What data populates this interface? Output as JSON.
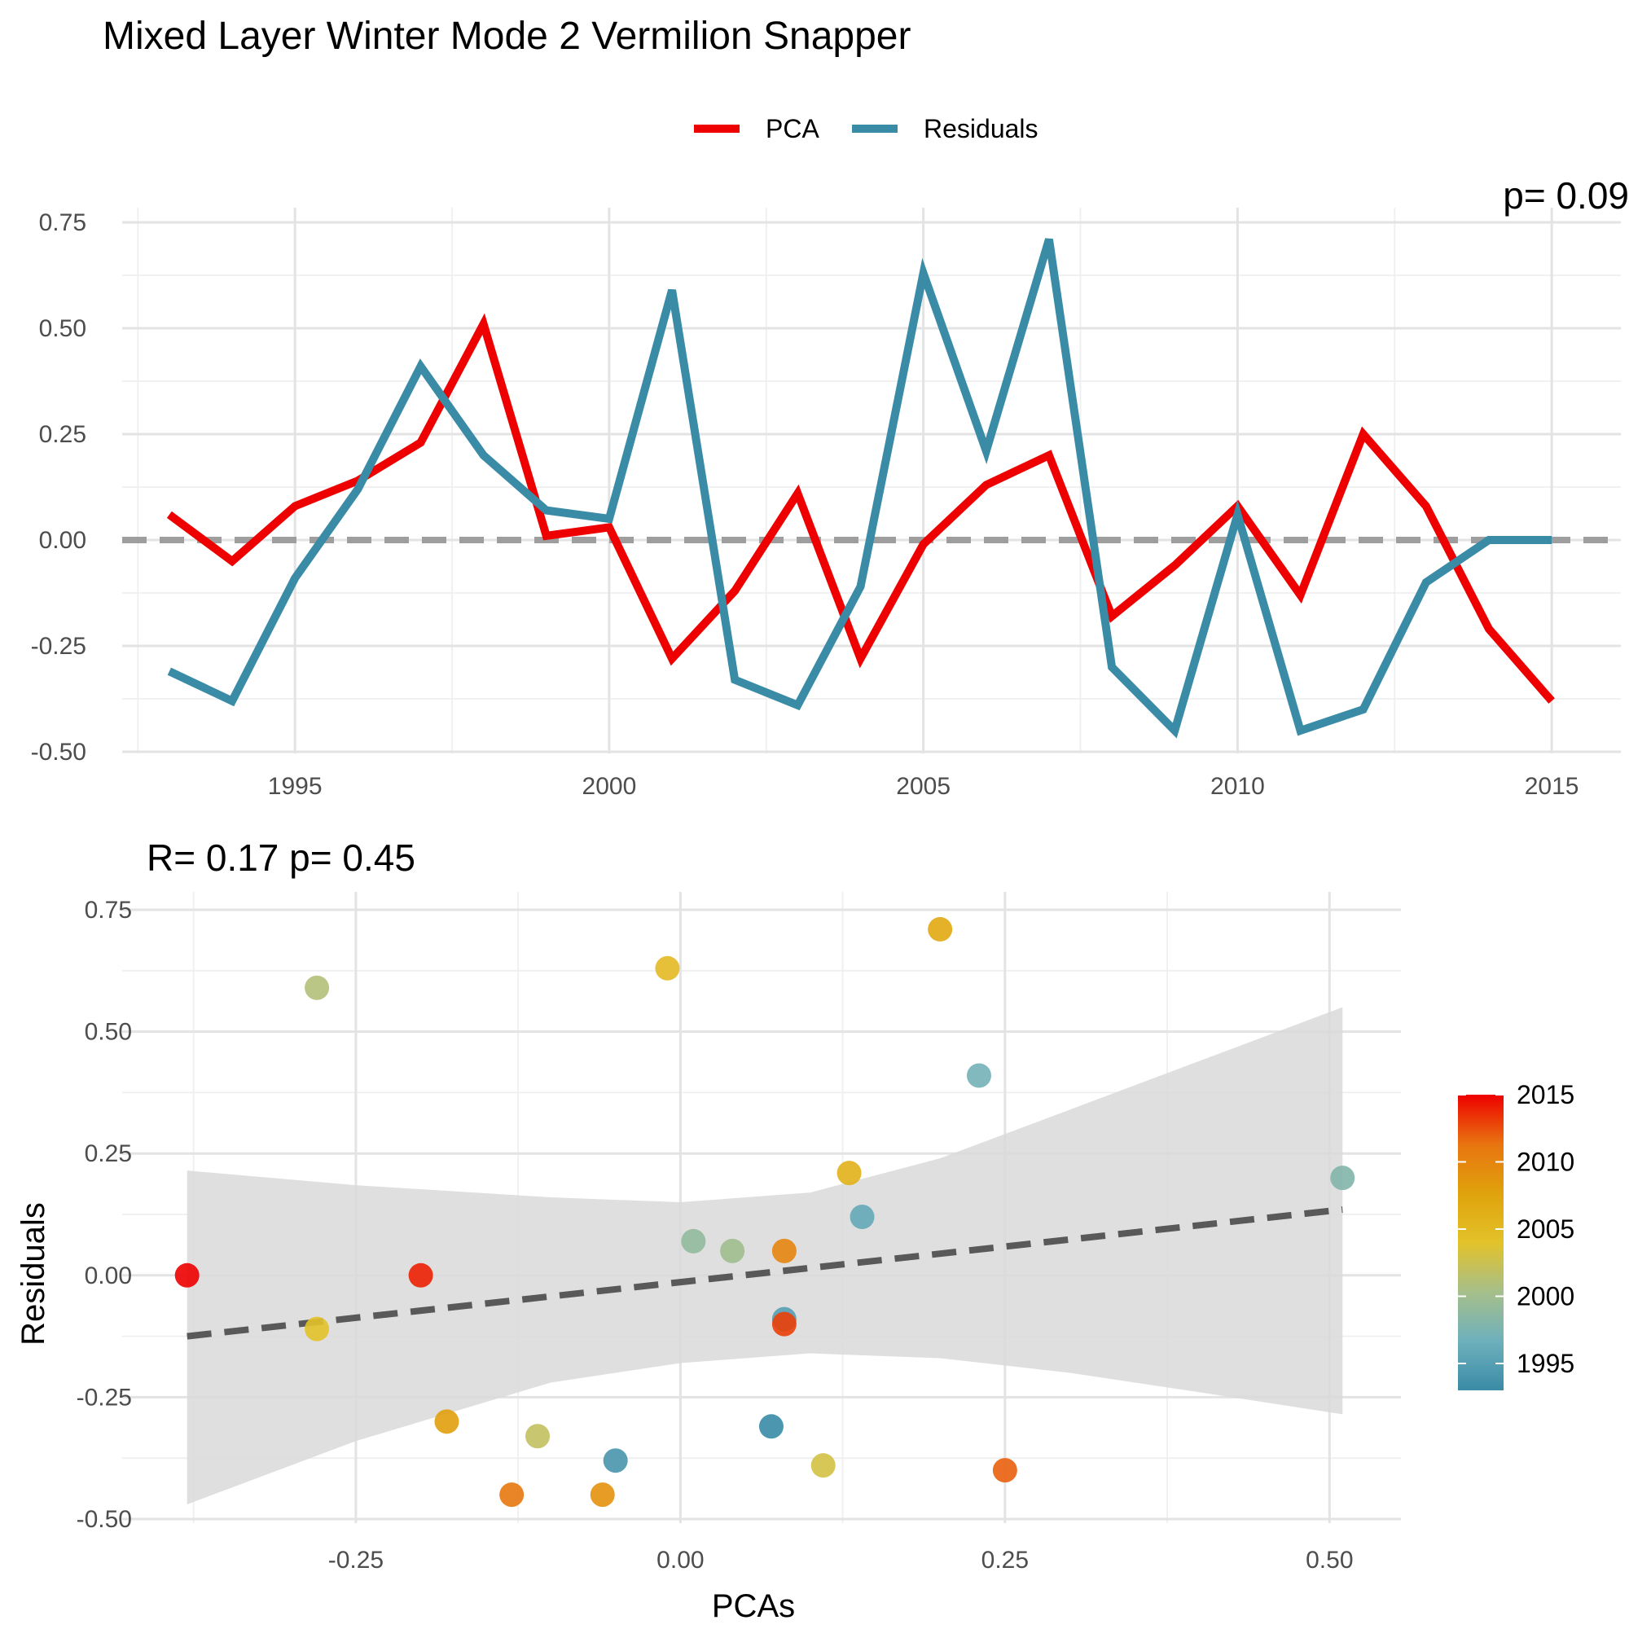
{
  "title": "Mixed Layer Winter Mode 2 Vermilion Snapper",
  "colors": {
    "pca": "#ee0000",
    "residuals": "#3a8ba6",
    "zero_line": "#9e9e9e",
    "fit_line": "#595959",
    "ribbon": "#d9d9d9"
  },
  "legend": {
    "position": "top",
    "items": [
      "PCA",
      "Residuals"
    ]
  },
  "top_partial_text": "p= 0.09",
  "annotation": "R= 0.17  p= 0.45",
  "colorbar": {
    "ticks": [
      "2015",
      "2010",
      "2005",
      "2000",
      "1995"
    ],
    "tick_values": [
      2015,
      2010,
      2005,
      2000,
      1995
    ],
    "range": [
      1993,
      2015
    ],
    "stops": [
      "#3a8ba6",
      "#6eb0bc",
      "#a6bf8a",
      "#e3c22a",
      "#e0a20c",
      "#e87410",
      "#ee0000"
    ]
  },
  "chart_data": [
    {
      "type": "line",
      "title": "Mixed Layer Winter Mode 2 Vermilion Snapper",
      "xlabel": "",
      "ylabel": "",
      "x": [
        1993,
        1994,
        1995,
        1996,
        1997,
        1998,
        1999,
        2000,
        2001,
        2002,
        2003,
        2004,
        2005,
        2006,
        2007,
        2008,
        2009,
        2010,
        2011,
        2012,
        2013,
        2014,
        2015
      ],
      "series": [
        {
          "name": "PCA",
          "values": [
            0.06,
            -0.05,
            0.08,
            0.14,
            0.23,
            0.51,
            0.01,
            0.03,
            -0.28,
            -0.12,
            0.11,
            -0.28,
            -0.01,
            0.13,
            0.2,
            -0.18,
            -0.06,
            0.08,
            -0.13,
            0.25,
            0.08,
            -0.21,
            -0.38
          ]
        },
        {
          "name": "Residuals",
          "values": [
            -0.31,
            -0.38,
            -0.09,
            0.12,
            0.41,
            0.2,
            0.07,
            0.05,
            0.59,
            -0.33,
            -0.39,
            -0.11,
            0.63,
            0.21,
            0.71,
            -0.3,
            -0.45,
            0.06,
            -0.45,
            -0.4,
            -0.1,
            0.0,
            0.0
          ]
        }
      ],
      "reference_line": 0,
      "xlim": [
        1992.25,
        2016.1
      ],
      "ylim": [
        -0.5,
        0.78
      ],
      "xticks": [
        "1995",
        "2000",
        "2005",
        "2010",
        "2015"
      ],
      "yticks": [
        "-0.50",
        "-0.25",
        "0.00",
        "0.25",
        "0.50",
        "0.75"
      ],
      "grid": true,
      "legend": "top"
    },
    {
      "type": "scatter",
      "xlabel": "PCAs",
      "ylabel": "Residuals",
      "points": [
        {
          "year": 1993,
          "x": 0.07,
          "y": -0.31
        },
        {
          "year": 1994,
          "x": -0.05,
          "y": -0.38
        },
        {
          "year": 1995,
          "x": 0.08,
          "y": -0.09
        },
        {
          "year": 1996,
          "x": 0.14,
          "y": 0.12
        },
        {
          "year": 1997,
          "x": 0.23,
          "y": 0.41
        },
        {
          "year": 1998,
          "x": 0.51,
          "y": 0.2
        },
        {
          "year": 1999,
          "x": 0.01,
          "y": 0.07
        },
        {
          "year": 2000,
          "x": 0.04,
          "y": 0.05
        },
        {
          "year": 2001,
          "x": -0.28,
          "y": 0.59
        },
        {
          "year": 2002,
          "x": -0.11,
          "y": -0.33
        },
        {
          "year": 2003,
          "x": 0.11,
          "y": -0.39
        },
        {
          "year": 2004,
          "x": -0.28,
          "y": -0.11
        },
        {
          "year": 2005,
          "x": -0.01,
          "y": 0.63
        },
        {
          "year": 2006,
          "x": 0.13,
          "y": 0.21
        },
        {
          "year": 2007,
          "x": 0.2,
          "y": 0.71
        },
        {
          "year": 2008,
          "x": -0.18,
          "y": -0.3
        },
        {
          "year": 2009,
          "x": -0.06,
          "y": -0.45
        },
        {
          "year": 2010,
          "x": 0.08,
          "y": 0.05
        },
        {
          "year": 2011,
          "x": -0.13,
          "y": -0.45
        },
        {
          "year": 2012,
          "x": 0.25,
          "y": -0.4
        },
        {
          "year": 2013,
          "x": 0.08,
          "y": -0.1
        },
        {
          "year": 2014,
          "x": -0.2,
          "y": 0.0
        },
        {
          "year": 2015,
          "x": -0.38,
          "y": 0.0
        }
      ],
      "fit": {
        "type": "linear",
        "x": [
          -0.38,
          0.51
        ],
        "y": [
          -0.125,
          0.135
        ]
      },
      "ribbon": {
        "x": [
          -0.38,
          -0.25,
          -0.1,
          0.0,
          0.1,
          0.2,
          0.3,
          0.4,
          0.51
        ],
        "lower": [
          -0.47,
          -0.34,
          -0.22,
          -0.18,
          -0.16,
          -0.17,
          -0.2,
          -0.24,
          -0.285
        ],
        "upper": [
          0.215,
          0.185,
          0.16,
          0.15,
          0.17,
          0.24,
          0.34,
          0.44,
          0.55
        ]
      },
      "xlim": [
        -0.43,
        0.555
      ],
      "ylim": [
        -0.5,
        0.78
      ],
      "xticks": [
        "-0.25",
        "0.00",
        "0.25",
        "0.50"
      ],
      "yticks": [
        "-0.50",
        "-0.25",
        "0.00",
        "0.25",
        "0.50",
        "0.75"
      ],
      "grid": true,
      "color_scale": "year",
      "legend": "right"
    }
  ]
}
